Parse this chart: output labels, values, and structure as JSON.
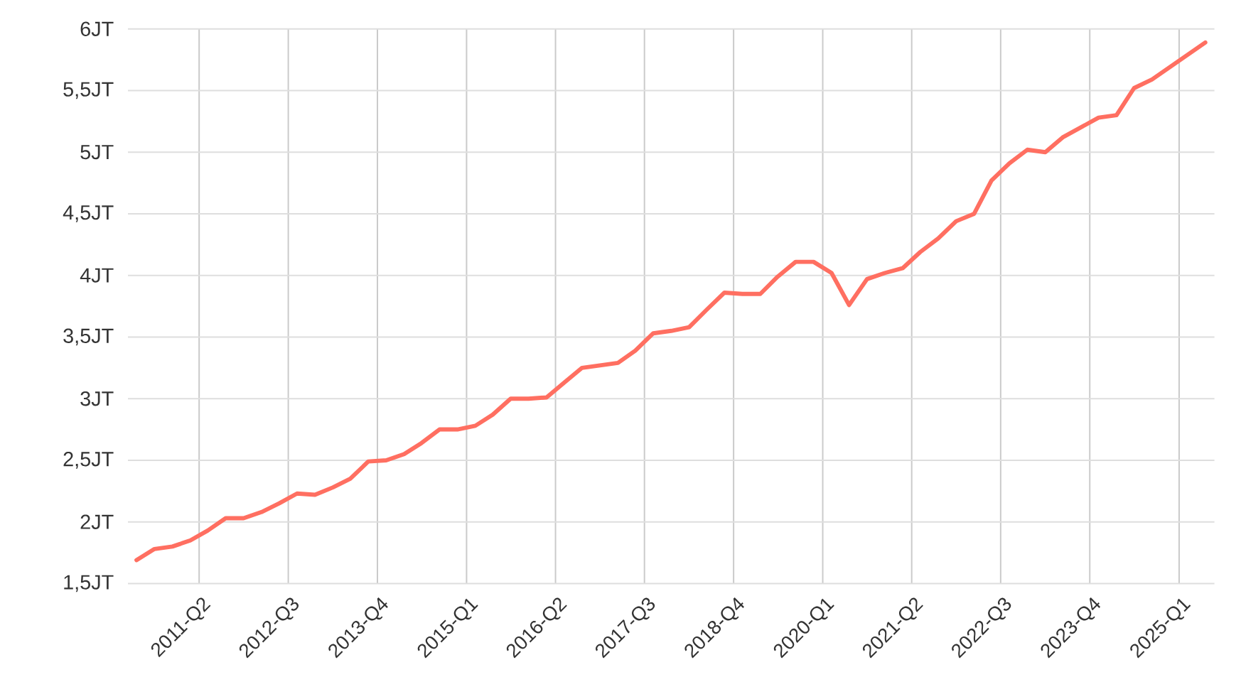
{
  "chart_data": {
    "type": "line",
    "x": [
      "2010-05-15",
      "2010-08-15",
      "2010-11-15",
      "2011-02-15",
      "2011-05-15",
      "2011-08-15",
      "2011-11-15",
      "2012-02-15",
      "2012-05-15",
      "2012-08-15",
      "2012-11-15",
      "2013-02-15",
      "2013-05-15",
      "2013-08-15",
      "2013-11-15",
      "2014-02-15",
      "2014-05-15",
      "2014-08-15",
      "2014-11-15",
      "2015-02-15",
      "2015-05-15",
      "2015-08-15",
      "2015-11-15",
      "2016-02-15",
      "2016-05-15",
      "2016-08-15",
      "2016-11-15",
      "2017-02-15",
      "2017-05-15",
      "2017-08-15",
      "2017-11-15",
      "2018-02-15",
      "2018-05-15",
      "2018-08-15",
      "2018-11-15",
      "2019-02-15",
      "2019-05-15",
      "2019-08-15",
      "2019-11-15",
      "2020-02-15",
      "2020-05-15",
      "2020-08-15",
      "2020-11-15",
      "2021-02-15",
      "2021-05-15",
      "2021-08-15",
      "2021-11-15",
      "2022-02-15",
      "2022-05-15",
      "2022-08-15",
      "2022-11-15",
      "2023-02-15",
      "2023-05-15",
      "2023-08-15",
      "2023-11-15",
      "2024-02-15",
      "2024-05-15",
      "2024-08-15",
      "2024-11-15",
      "2025-02-15",
      "2025-05-15"
    ],
    "series": [
      {
        "color": "#ff6f61",
        "values": [
          1.69,
          1.78,
          1.8,
          1.85,
          1.93,
          2.03,
          2.03,
          2.08,
          2.15,
          2.23,
          2.22,
          2.28,
          2.35,
          2.49,
          2.5,
          2.55,
          2.64,
          2.75,
          2.75,
          2.78,
          2.87,
          3.0,
          3.0,
          3.01,
          3.13,
          3.25,
          3.27,
          3.29,
          3.39,
          3.53,
          3.55,
          3.58,
          3.72,
          3.86,
          3.85,
          3.85,
          3.99,
          4.11,
          4.11,
          4.02,
          3.76,
          3.97,
          4.02,
          4.06,
          4.19,
          4.3,
          4.44,
          4.5,
          4.77,
          4.91,
          5.02,
          5.0,
          5.12,
          5.2,
          5.28,
          5.3,
          5.52,
          5.59,
          null,
          null,
          5.89
        ]
      }
    ],
    "xlim": [
      "2010-04-01",
      "2025-07-01"
    ],
    "xticks": [
      {
        "value": "2011-04-01",
        "label": "2011-Q2"
      },
      {
        "value": "2012-07-01",
        "label": "2012-Q3"
      },
      {
        "value": "2013-10-01",
        "label": "2013-Q4"
      },
      {
        "value": "2015-01-01",
        "label": "2015-Q1"
      },
      {
        "value": "2016-04-01",
        "label": "2016-Q2"
      },
      {
        "value": "2017-07-01",
        "label": "2017-Q3"
      },
      {
        "value": "2018-10-01",
        "label": "2018-Q4"
      },
      {
        "value": "2020-01-01",
        "label": "2020-Q1"
      },
      {
        "value": "2021-04-01",
        "label": "2021-Q2"
      },
      {
        "value": "2022-07-01",
        "label": "2022-Q3"
      },
      {
        "value": "2023-10-01",
        "label": "2023-Q4"
      },
      {
        "value": "2025-01-01",
        "label": "2025-Q1"
      }
    ],
    "ylim": [
      1.5,
      6
    ],
    "yticks": [
      {
        "value": 1.5,
        "label": "1,5JT"
      },
      {
        "value": 2,
        "label": "2JT"
      },
      {
        "value": 2.5,
        "label": "2,5JT"
      },
      {
        "value": 3,
        "label": "3JT"
      },
      {
        "value": 3.5,
        "label": "3,5JT"
      },
      {
        "value": 4,
        "label": "4JT"
      },
      {
        "value": 4.5,
        "label": "4,5JT"
      },
      {
        "value": 5,
        "label": "5JT"
      },
      {
        "value": 5.5,
        "label": "5,5JT"
      },
      {
        "value": 6,
        "label": "6JT"
      }
    ],
    "grid": true
  }
}
